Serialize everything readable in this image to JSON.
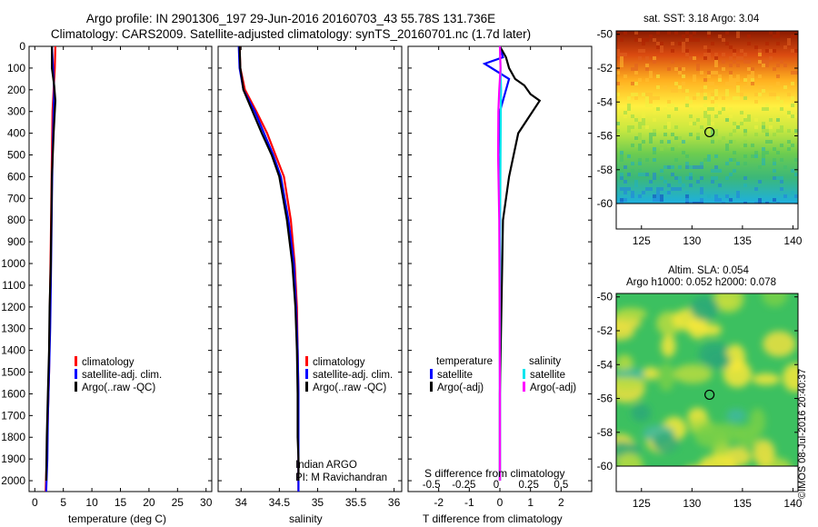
{
  "header": {
    "line1": "Argo profile: IN 2901306_197 29-Jun-2016 20160703_43 55.78S 131.736E",
    "line2": "Climatology: CARS2009. Satellite-adjusted climatology: synTS_20160701.nc (1.7d later)"
  },
  "colors": {
    "climatology": "#ff0000",
    "satellite": "#0000ff",
    "argo": "#000000",
    "salinity_satellite": "#00e5ee",
    "salinity_argo": "#ff00ff",
    "mask": "#ffffff",
    "marker": "#000000"
  },
  "panels": {
    "temperature": {
      "xlabel": "temperature (deg C)",
      "legend": [
        "climatology",
        "satellite-adj. clim.",
        "Argo(..raw -QC)"
      ]
    },
    "salinity": {
      "xlabel": "salinity",
      "legend": [
        "climatology",
        "satellite-adj. clim.",
        "Argo(..raw -QC)"
      ],
      "note_line1": "Indian ARGO",
      "note_line2": "PI: M Ravichandran"
    },
    "difference": {
      "xlabel": "T difference from climatology",
      "xlabel_top": "S difference from climatology",
      "legend_temp_header": "temperature",
      "legend_sal_header": "salinity",
      "legend_temp": [
        "satellite",
        "Argo(-adj)"
      ],
      "legend_sal": [
        "satellite",
        "Argo(-adj)"
      ]
    }
  },
  "maps": {
    "sst_title": "sat. SST: 3.18 Argo: 3.04",
    "sla_title_line1": "Altim. SLA: 0.054",
    "sla_title_line2": "Argo h1000: 0.052 h2000: 0.078",
    "xticks": [
      "125",
      "130",
      "135",
      "140"
    ],
    "yticks": [
      "-50",
      "-52",
      "-54",
      "-56",
      "-58",
      "-60"
    ],
    "profile_location": {
      "lon": 131.736,
      "lat": -55.78
    },
    "sst_mask_from_lat": -60,
    "sla_mask_from_lat": -60
  },
  "credit": "©IMOS 08-Jul-2016 20:40:37",
  "chart_data": [
    {
      "type": "line",
      "id": "temperature",
      "xlabel": "temperature (deg C)",
      "ylabel": "",
      "xlim": [
        -1,
        31
      ],
      "ylim": [
        2050,
        0
      ],
      "xticks": [
        0,
        5,
        10,
        15,
        20,
        25,
        30
      ],
      "yticks": [
        0,
        100,
        200,
        300,
        400,
        500,
        600,
        700,
        800,
        900,
        1000,
        1100,
        1200,
        1300,
        1400,
        1500,
        1600,
        1700,
        1800,
        1900,
        2000
      ],
      "grid": false,
      "series": [
        {
          "name": "climatology",
          "color": "#ff0000",
          "x": [
            3.6,
            3.5,
            3.3,
            3.1,
            3.0,
            2.9,
            2.8,
            2.7,
            2.6,
            2.5,
            2.3,
            2.1,
            1.9
          ],
          "y": [
            0,
            100,
            200,
            300,
            500,
            700,
            900,
            1100,
            1300,
            1500,
            1700,
            1900,
            2050
          ]
        },
        {
          "name": "satellite-adj. clim.",
          "color": "#0000ff",
          "x": [
            3.0,
            3.2,
            3.4,
            3.3,
            3.1,
            3.0,
            2.9,
            2.8,
            2.7,
            2.5,
            2.3,
            2.2,
            2.0
          ],
          "y": [
            0,
            100,
            200,
            300,
            500,
            700,
            900,
            1100,
            1300,
            1500,
            1700,
            1900,
            2050
          ]
        },
        {
          "name": "Argo(..raw -QC)",
          "color": "#000000",
          "x": [
            3.0,
            3.0,
            3.4,
            3.6,
            3.3,
            3.0,
            2.9,
            2.8,
            2.6,
            2.5,
            2.3,
            2.1,
            2.0
          ],
          "y": [
            0,
            100,
            180,
            250,
            400,
            600,
            800,
            1000,
            1200,
            1400,
            1600,
            1800,
            2000
          ]
        }
      ]
    },
    {
      "type": "line",
      "id": "salinity",
      "xlabel": "salinity",
      "ylabel": "",
      "xlim": [
        33.7,
        36.1
      ],
      "ylim": [
        2050,
        0
      ],
      "xticks": [
        34,
        34.5,
        35,
        35.5,
        36
      ],
      "grid": false,
      "series": [
        {
          "name": "climatology",
          "color": "#ff0000",
          "x": [
            33.98,
            33.99,
            34.05,
            34.2,
            34.34,
            34.45,
            34.56,
            34.65,
            34.7,
            34.73,
            34.74,
            34.75,
            34.75,
            34.75,
            34.75
          ],
          "y": [
            0,
            100,
            200,
            300,
            400,
            500,
            600,
            800,
            1000,
            1200,
            1400,
            1600,
            1800,
            1900,
            2050
          ]
        },
        {
          "name": "satellite-adj. clim.",
          "color": "#0000ff",
          "x": [
            33.97,
            33.98,
            34.03,
            34.18,
            34.3,
            34.42,
            34.52,
            34.62,
            34.69,
            34.72,
            34.74,
            34.75,
            34.75,
            34.75,
            34.75
          ],
          "y": [
            0,
            100,
            200,
            300,
            400,
            500,
            600,
            800,
            1000,
            1200,
            1400,
            1600,
            1800,
            1900,
            2050
          ]
        },
        {
          "name": "Argo(..raw -QC)",
          "color": "#000000",
          "x": [
            33.98,
            33.99,
            34.03,
            34.15,
            34.27,
            34.4,
            34.5,
            34.6,
            34.67,
            34.71,
            34.73,
            34.74,
            34.74,
            34.75,
            34.75
          ],
          "y": [
            0,
            100,
            200,
            300,
            400,
            500,
            600,
            800,
            1000,
            1200,
            1400,
            1600,
            1800,
            1900,
            2000
          ]
        }
      ]
    },
    {
      "type": "line",
      "id": "difference",
      "xlabel": "T difference from climatology",
      "xlabel_top": "S difference from climatology",
      "xlim": [
        -3,
        3
      ],
      "ylim": [
        2050,
        0
      ],
      "xticks": [
        -2,
        -1,
        0,
        1,
        2
      ],
      "xticklabels_top": [
        "-0.5",
        "-0.25",
        "0",
        "0.25",
        "0.5"
      ],
      "grid": false,
      "series": [
        {
          "name": "temperature satellite",
          "color": "#0000ff",
          "x": [
            0,
            0.1,
            -0.5,
            0.3,
            0.0,
            -0.05,
            0.0,
            0.0,
            0.0,
            0.0,
            0.0
          ],
          "y": [
            0,
            50,
            80,
            150,
            300,
            500,
            800,
            1100,
            1400,
            1700,
            2000
          ]
        },
        {
          "name": "temperature Argo(-adj)",
          "color": "#000000",
          "x": [
            0,
            0.2,
            0.3,
            0.5,
            0.8,
            1.0,
            1.3,
            0.6,
            0.3,
            0.1,
            0.05,
            0.0,
            0.0
          ],
          "y": [
            0,
            50,
            100,
            150,
            180,
            220,
            250,
            400,
            600,
            800,
            1200,
            1600,
            2000
          ]
        },
        {
          "name": "salinity satellite",
          "color": "#00e5ee",
          "x": [
            0,
            0.02,
            0.04,
            0.03,
            0.02,
            0.01,
            0.0,
            0.0,
            0.0
          ],
          "y": [
            0,
            100,
            200,
            300,
            500,
            800,
            1200,
            1600,
            2000
          ]
        },
        {
          "name": "salinity Argo(-adj)",
          "color": "#ff00ff",
          "x": [
            0,
            0.02,
            -0.02,
            -0.05,
            -0.06,
            -0.02,
            -0.01,
            0.0,
            0.0
          ],
          "y": [
            0,
            100,
            200,
            300,
            500,
            800,
            1200,
            1600,
            2000
          ]
        }
      ]
    },
    {
      "type": "heatmap",
      "id": "sst_map",
      "title": "sat. SST: 3.18 Argo: 3.04",
      "xlim": [
        122.5,
        140.5
      ],
      "ylim": [
        -61.5,
        -49.8
      ],
      "xticks": [
        125,
        130,
        135,
        140
      ],
      "yticks": [
        -50,
        -52,
        -54,
        -56,
        -58,
        -60
      ],
      "marker": {
        "lon": 131.736,
        "lat": -55.78
      }
    },
    {
      "type": "heatmap",
      "id": "sla_map",
      "title": "Altim. SLA: 0.054",
      "xlim": [
        122.5,
        140.5
      ],
      "ylim": [
        -61.5,
        -49.8
      ],
      "xticks": [
        125,
        130,
        135,
        140
      ],
      "yticks": [
        -50,
        -52,
        -54,
        -56,
        -58,
        -60
      ],
      "marker": {
        "lon": 131.736,
        "lat": -55.78
      }
    }
  ]
}
